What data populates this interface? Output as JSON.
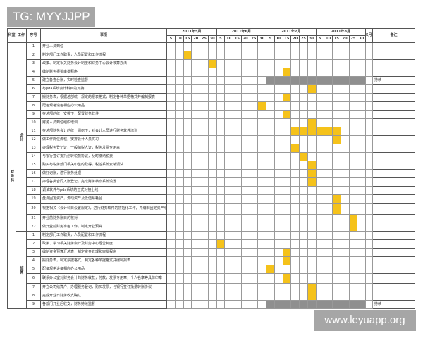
{
  "header": {
    "dept": "科室",
    "work": "工作",
    "no": "序号",
    "item": "事项",
    "months": [
      "2011年5月",
      "2011年6月",
      "2011年7月",
      "2011年8月"
    ],
    "days": [
      "5",
      "10",
      "15",
      "20",
      "25",
      "30"
    ],
    "extra": "5月1日",
    "remark": "备注"
  },
  "department": "财务科",
  "colors": {
    "task": "#f5c21a",
    "ongoing": "#8f8f8f"
  },
  "sections": [
    {
      "label": "会计",
      "rows": [
        {
          "no": "1",
          "text": "开业人员到位",
          "marks": []
        },
        {
          "no": "2",
          "text": "制定部门工作职责，人员配置和工作流程",
          "marks": [
            2
          ]
        },
        {
          "no": "3",
          "text": "政策、制定相关财务会计制度和财务中心会计核算办法",
          "marks": [
            5
          ]
        },
        {
          "no": "4",
          "text": "编制财务报销审批程序",
          "marks": [
            14
          ]
        },
        {
          "no": "5",
          "text": "建立备查台账，实时检查监督",
          "marks": [],
          "ongoing": [
            12,
            23
          ],
          "remark": "持续"
        },
        {
          "no": "6",
          "text": "与pda系统会计科目的对接",
          "marks": [
            17
          ]
        },
        {
          "no": "7",
          "text": "搬财务表，根据总部统一规定的报表格式，制定各种单据格式并编制报表",
          "marks": [
            14
          ]
        },
        {
          "no": "8",
          "text": "配备规格设备相应办公用品",
          "marks": [
            11
          ]
        },
        {
          "no": "9",
          "text": "在总部的统一安排下，配置财务软件",
          "marks": [
            14
          ]
        },
        {
          "no": "10",
          "text": "财务人员到位组织培训",
          "marks": [
            17
          ]
        },
        {
          "no": "11",
          "text": "在总部财务会计的统一组织下，对会计人员进行财务软件培训",
          "marks": [
            15,
            16,
            17,
            18,
            19,
            20
          ]
        },
        {
          "no": "12",
          "text": "做工作岗位流程，安排会计人员实习",
          "marks": [
            20
          ]
        },
        {
          "no": "13",
          "text": "办理税务登记证，一般纳税人证，税务发票专用章",
          "marks": [
            15
          ]
        },
        {
          "no": "14",
          "text": "与银行签订委托划转税款协议，及时缴纳税费",
          "marks": [
            16
          ]
        },
        {
          "no": "15",
          "text": "购买与税务部门相关印鉴的取得，税控系统安装调试",
          "marks": [
            17
          ]
        },
        {
          "no": "16",
          "text": "做好记账，进行账务处理",
          "marks": [
            17
          ]
        },
        {
          "no": "17",
          "text": "办理各类合同入账登记，完成财务档案系统设置",
          "marks": [
            17
          ]
        },
        {
          "no": "18",
          "text": "调试软件与pda系统的正式对接上线",
          "marks": []
        },
        {
          "no": "19",
          "text": "盘点固定资产，流动资产及低值易耗品",
          "marks": [
            20
          ]
        },
        {
          "no": "20",
          "text": "根据相关《会计科目设置规定》，进行财务软件的初始化工作，并编制固定资产明细",
          "marks": [
            20
          ]
        },
        {
          "no": "21",
          "text": "开业前财务账目的核对",
          "marks": [
            22
          ]
        },
        {
          "no": "22",
          "text": "做开业前财务准备工作，制定开业预算",
          "marks": [
            22
          ]
        }
      ]
    },
    {
      "label": "结算",
      "rows": [
        {
          "no": "1",
          "text": "制定部门工作职责，人员配置和工作流程",
          "marks": []
        },
        {
          "no": "2",
          "text": "政策、学习相关财务会计及财务中心经营制度",
          "marks": [
            6
          ]
        },
        {
          "no": "3",
          "text": "编制资金预算汇总表，制定资金管理和审批程序",
          "marks": [
            14
          ]
        },
        {
          "no": "4",
          "text": "搬财务表，制定票据格式，制定各种单据格式并编制报表",
          "marks": [
            14
          ]
        },
        {
          "no": "5",
          "text": "配备规格设备相应办公用品",
          "marks": [
            12
          ]
        },
        {
          "no": "6",
          "text": "联系办公室对财务会计的财务收款，付款，发票专用章，个人名章等具体印章",
          "marks": [
            14
          ]
        },
        {
          "no": "7",
          "text": "开立公司结算户，办理税务登记，购买发票，与银行签订批量转账协议",
          "marks": [
            17
          ]
        },
        {
          "no": "8",
          "text": "完成开业日财务收支确认",
          "marks": [
            17
          ]
        },
        {
          "no": "9",
          "text": "各部门开业后收支，财务持续监督",
          "marks": [],
          "ongoing": [
            12,
            23
          ],
          "remark": "持续"
        }
      ]
    }
  ],
  "watermarks": {
    "top": "TG: MYYJJPP",
    "bottom": "www.leyuapp.org"
  }
}
